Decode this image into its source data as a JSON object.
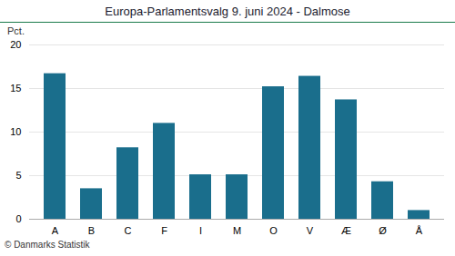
{
  "chart_data": {
    "type": "bar",
    "title": "Europa-Parlamentsvalg 9. juni 2024 - Dalmose",
    "categories": [
      "A",
      "B",
      "C",
      "F",
      "I",
      "M",
      "O",
      "V",
      "Æ",
      "Ø",
      "Å"
    ],
    "values": [
      16.7,
      3.5,
      8.2,
      11.0,
      5.1,
      5.1,
      15.2,
      16.4,
      13.7,
      4.3,
      1.0
    ],
    "color": "#1a6e8c",
    "ylabel": "Pct.",
    "ylim": [
      0,
      20
    ],
    "yticks": [
      0,
      5,
      10,
      15,
      20
    ],
    "grid": true,
    "caption": "© Danmarks Statistik"
  }
}
